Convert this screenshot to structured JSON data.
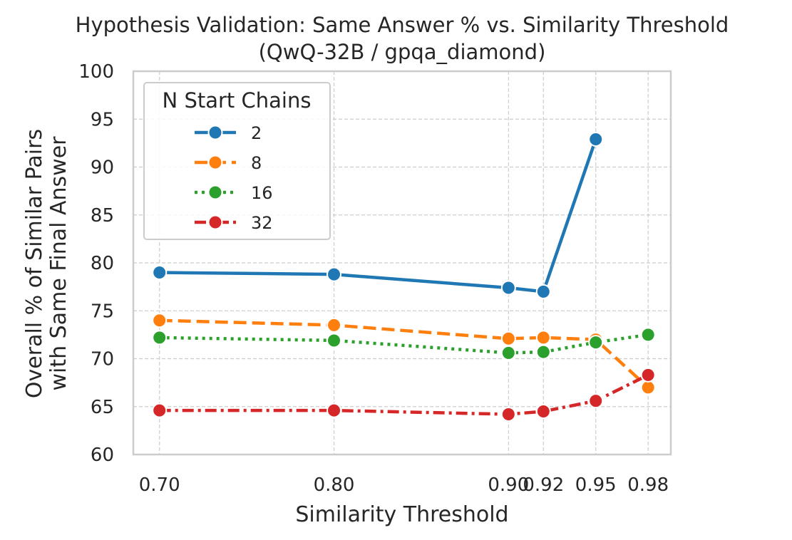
{
  "chart_data": {
    "type": "line",
    "title_line1": "Hypothesis Validation: Same Answer % vs. Similarity Threshold",
    "title_line2": "(QwQ-32B / gpqa_diamond)",
    "xlabel": "Similarity Threshold",
    "ylabel_line1": "Overall % of Similar Pairs",
    "ylabel_line2": "with Same Final Answer",
    "xlim": [
      0.685,
      0.993
    ],
    "ylim": [
      60,
      100
    ],
    "x_ticks": [
      0.7,
      0.8,
      0.9,
      0.92,
      0.95,
      0.98
    ],
    "x_tick_labels": [
      "0.70",
      "0.80",
      "0.90",
      "0.92",
      "0.95",
      "0.98"
    ],
    "y_ticks": [
      60,
      65,
      70,
      75,
      80,
      85,
      90,
      95,
      100
    ],
    "y_tick_labels": [
      "60",
      "65",
      "70",
      "75",
      "80",
      "85",
      "90",
      "95",
      "100"
    ],
    "grid": true,
    "legend": {
      "title": "N Start Chains",
      "placement": "top-left"
    },
    "series": [
      {
        "name": "2",
        "color": "#1f77b4",
        "dash": "solid",
        "x": [
          0.7,
          0.8,
          0.9,
          0.92,
          0.95
        ],
        "y": [
          79.0,
          78.8,
          77.4,
          77.0,
          92.9
        ]
      },
      {
        "name": "8",
        "color": "#ff7f0e",
        "dash": "dashed",
        "x": [
          0.7,
          0.8,
          0.9,
          0.92,
          0.95,
          0.98
        ],
        "y": [
          74.0,
          73.5,
          72.1,
          72.2,
          72.0,
          67.0
        ]
      },
      {
        "name": "16",
        "color": "#2ca02c",
        "dash": "dotted",
        "x": [
          0.7,
          0.8,
          0.9,
          0.92,
          0.95,
          0.98
        ],
        "y": [
          72.2,
          71.9,
          70.6,
          70.7,
          71.7,
          72.5
        ]
      },
      {
        "name": "32",
        "color": "#d62728",
        "dash": "dashdot",
        "x": [
          0.7,
          0.8,
          0.9,
          0.92,
          0.95,
          0.98
        ],
        "y": [
          64.6,
          64.6,
          64.2,
          64.5,
          65.6,
          68.3
        ]
      }
    ]
  }
}
